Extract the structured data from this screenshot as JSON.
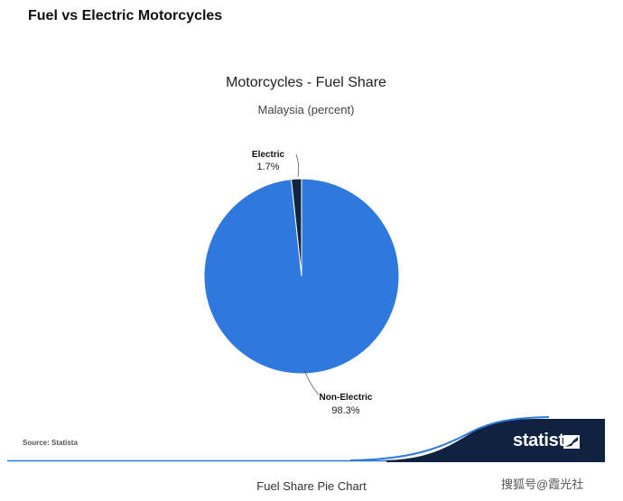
{
  "page": {
    "heading": "Fuel vs Electric Motorcycles",
    "caption": "Fuel Share Pie Chart",
    "watermark": "搜狐号@霞光社"
  },
  "chart_data": {
    "type": "pie",
    "title": "Motorcycles - Fuel Share",
    "subtitle": "Malaysia (percent)",
    "slices": [
      {
        "label": "Electric",
        "value": 1.7,
        "value_label": "1.7%",
        "color": "#12233d"
      },
      {
        "label": "Non-Electric",
        "value": 98.3,
        "value_label": "98.3%",
        "color": "#2f78de"
      }
    ],
    "start_angle_deg": 0,
    "direction": "counterclockwise",
    "source": "Source: Statista"
  },
  "brand": {
    "name": "statista",
    "band_color": "#0f2240",
    "accent_color": "#2f78de"
  }
}
